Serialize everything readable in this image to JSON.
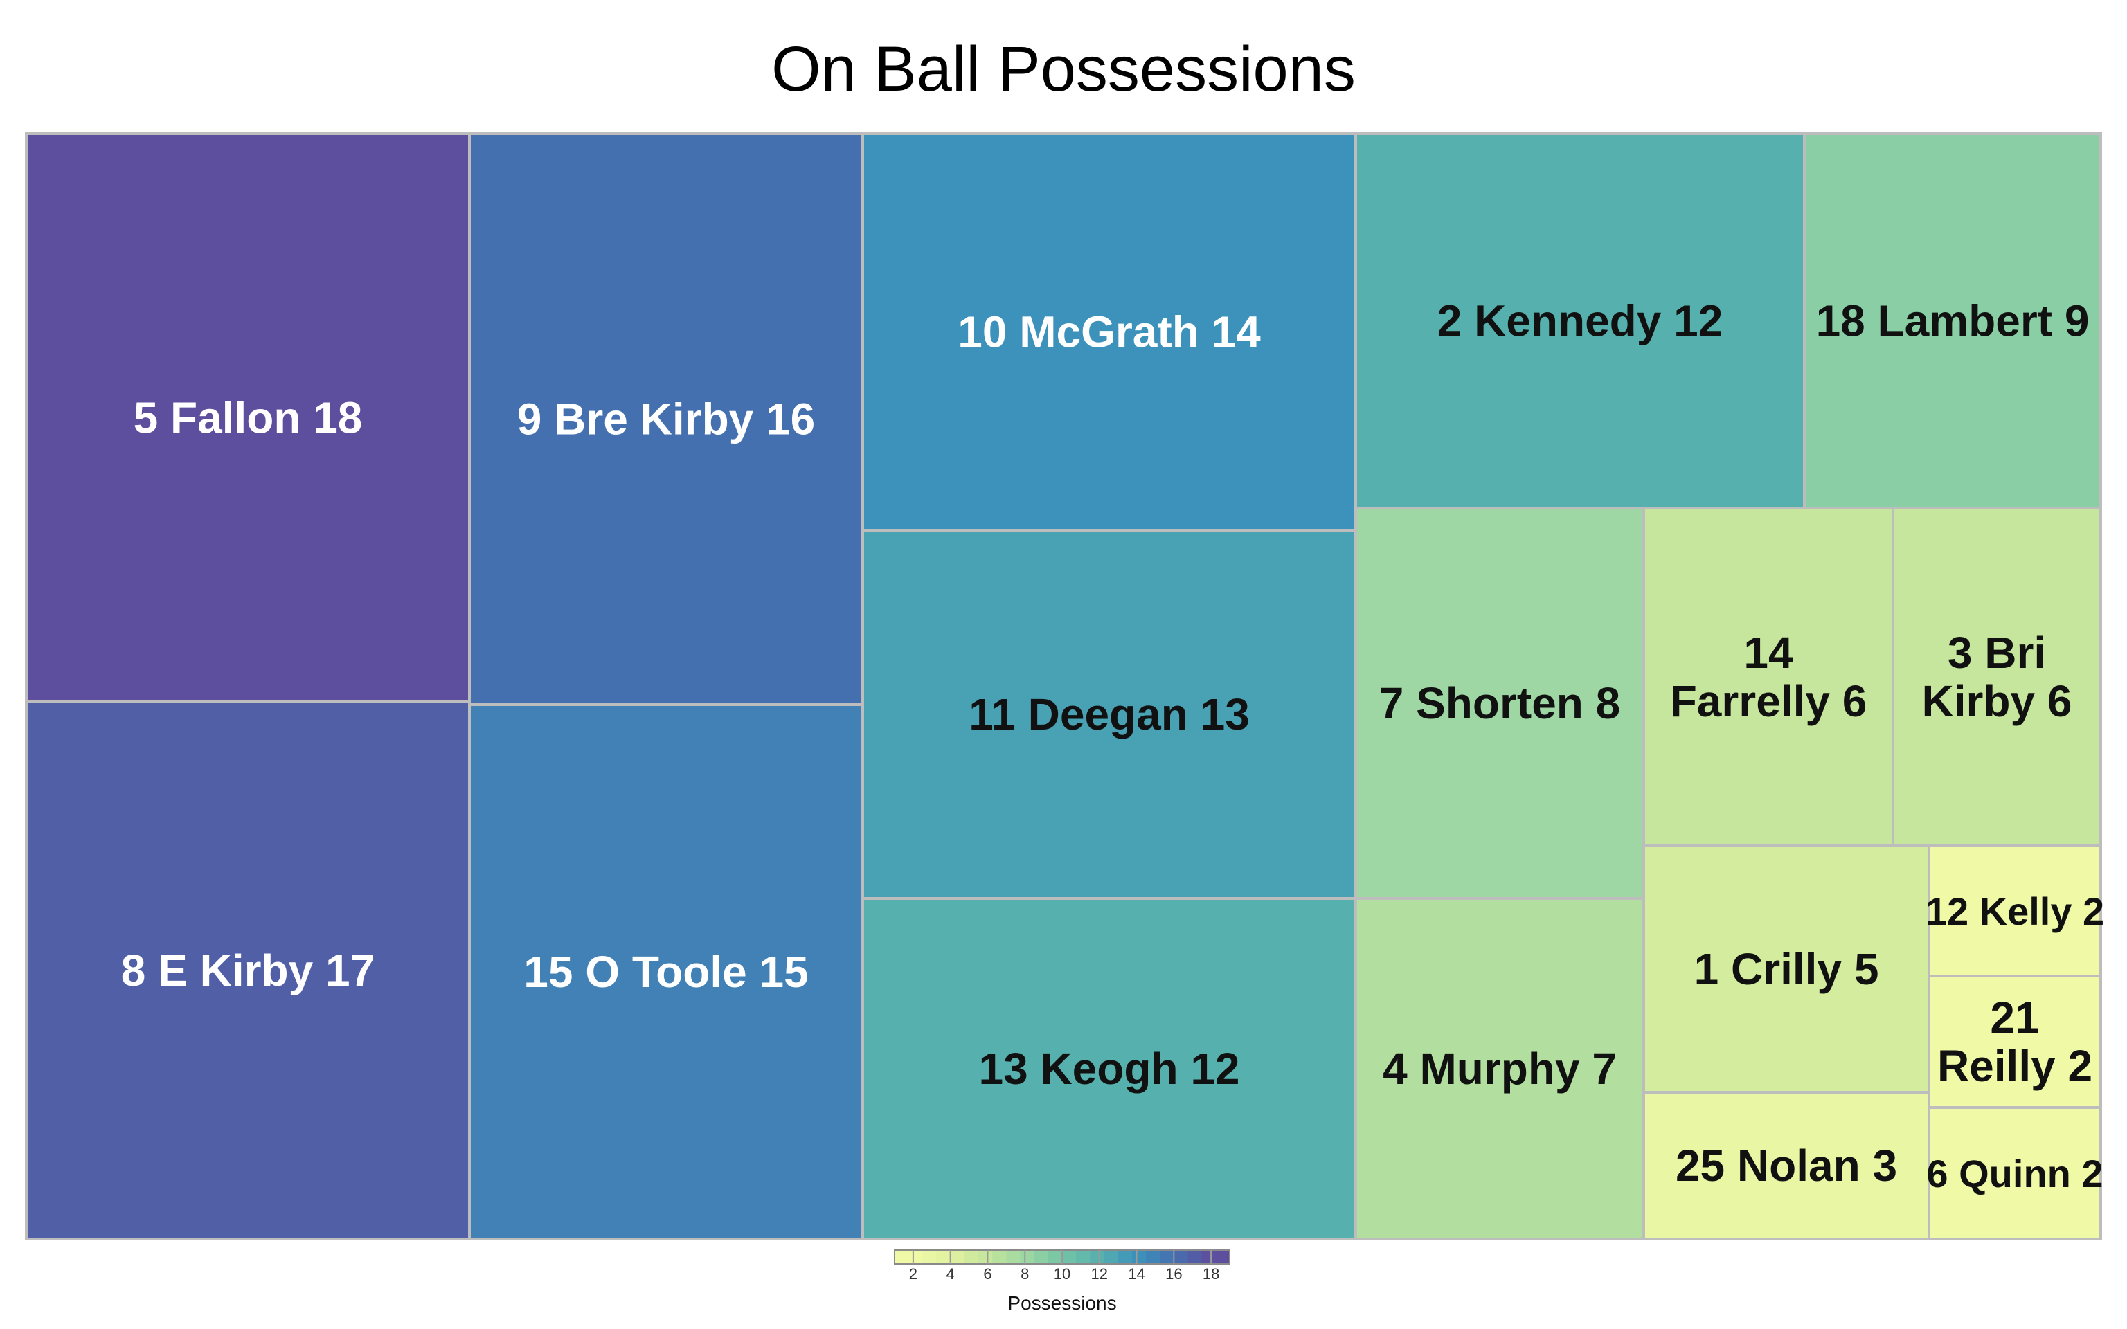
{
  "chart_data": {
    "type": "treemap",
    "title": "On Ball Possessions",
    "items": [
      {
        "label": "5 Fallon 18",
        "value": 18
      },
      {
        "label": "8 E Kirby 17",
        "value": 17
      },
      {
        "label": "9 Bre Kirby 16",
        "value": 16
      },
      {
        "label": "15 O Toole  15",
        "value": 15
      },
      {
        "label": "10 McGrath 14",
        "value": 14
      },
      {
        "label": "11 Deegan 13",
        "value": 13
      },
      {
        "label": "13 Keogh 12",
        "value": 12
      },
      {
        "label": "2 Kennedy 12",
        "value": 12
      },
      {
        "label": "18 Lambert 9",
        "value": 9
      },
      {
        "label": "7 Shorten 8",
        "value": 8
      },
      {
        "label": "4 Murphy 7",
        "value": 7
      },
      {
        "label": "14 Farrelly 6",
        "value": 6
      },
      {
        "label": "3 Bri Kirby 6",
        "value": 6
      },
      {
        "label": "1 Crilly 5",
        "value": 5
      },
      {
        "label": "25 Nolan 3",
        "value": 3
      },
      {
        "label": "12 Kelly 2",
        "value": 2
      },
      {
        "label": "21 Reilly 2",
        "value": 2
      },
      {
        "label": "6 Quinn 2",
        "value": 2
      }
    ],
    "legend": {
      "title": "Possessions",
      "ticks": [
        2,
        4,
        6,
        8,
        10,
        12,
        14,
        16,
        18
      ],
      "range": [
        1,
        19
      ],
      "placement": "bottom"
    },
    "color_stops": [
      {
        "value": 2,
        "color": "#f0f9a6"
      },
      {
        "value": 4,
        "color": "#e1f2a0"
      },
      {
        "value": 6,
        "color": "#c5e69c"
      },
      {
        "value": 8,
        "color": "#9ed7a3"
      },
      {
        "value": 10,
        "color": "#74c4a6"
      },
      {
        "value": 12,
        "color": "#56b0ad"
      },
      {
        "value": 14,
        "color": "#3c92bb"
      },
      {
        "value": 16,
        "color": "#4570b0"
      },
      {
        "value": 18,
        "color": "#5d4e9e"
      }
    ]
  }
}
